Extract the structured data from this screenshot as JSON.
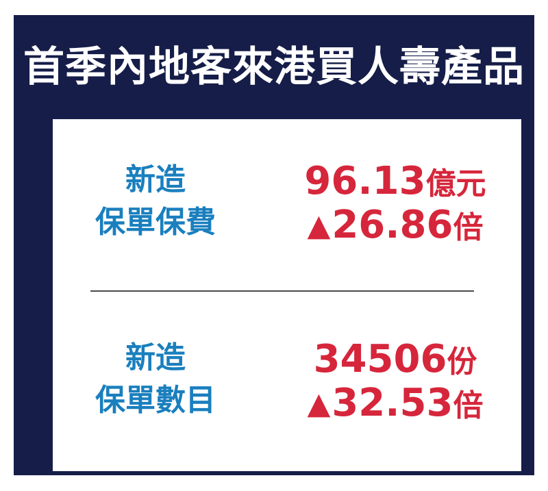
{
  "title": "首季內地客來港買人壽產品",
  "rows": [
    {
      "label_line1": "新造",
      "label_line2": "保單保費",
      "value": "96.13",
      "value_unit": "億元",
      "change_arrow": "▲",
      "change": "26.86",
      "change_unit": "倍"
    },
    {
      "label_line1": "新造",
      "label_line2": "保單數目",
      "value": "34506",
      "value_unit": "份",
      "change_arrow": "▲",
      "change": "32.53",
      "change_unit": "倍"
    }
  ],
  "colors": {
    "frame": "#151d48",
    "label": "#1a7fbe",
    "value": "#d6263b",
    "title": "#ffffff"
  }
}
